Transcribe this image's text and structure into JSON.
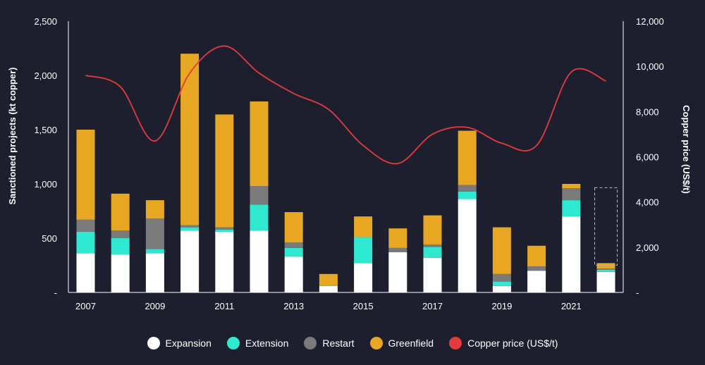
{
  "chart_data": {
    "type": "bar",
    "stacked": true,
    "x": [
      2007,
      2008,
      2009,
      2010,
      2011,
      2012,
      2013,
      2014,
      2015,
      2016,
      2017,
      2018,
      2019,
      2020,
      2021,
      2022
    ],
    "x_tick_labels": [
      "2007",
      "2009",
      "2011",
      "2013",
      "2015",
      "2017",
      "2019",
      "2021"
    ],
    "ylabel": "Sanctioned projects (kt copper)",
    "y2label": "Copper price (US$/t)",
    "ylim": [
      0,
      2500
    ],
    "y2lim": [
      0,
      12000
    ],
    "y_ticks": [
      0,
      500,
      1000,
      1500,
      2000,
      2500
    ],
    "y_tick_labels": [
      "-",
      "500",
      "1,000",
      "1,500",
      "2,000",
      "2,500"
    ],
    "y2_ticks": [
      0,
      2000,
      4000,
      6000,
      8000,
      10000,
      12000
    ],
    "y2_tick_labels": [
      "-",
      "2,000",
      "4,000",
      "6,000",
      "8,000",
      "10,000",
      "12,000"
    ],
    "grid": false,
    "legend_position": "bottom-center",
    "highlight_dashed_category": 2022,
    "series": [
      {
        "name": "Expansion",
        "color": "#ffffff",
        "values": [
          360,
          350,
          360,
          570,
          560,
          570,
          330,
          60,
          270,
          370,
          320,
          860,
          60,
          200,
          700,
          190
        ]
      },
      {
        "name": "Extension",
        "color": "#2ee8cf",
        "values": [
          200,
          150,
          40,
          30,
          20,
          240,
          80,
          0,
          240,
          0,
          100,
          70,
          40,
          0,
          150,
          20
        ]
      },
      {
        "name": "Restart",
        "color": "#7a7a7a",
        "values": [
          110,
          70,
          280,
          20,
          20,
          170,
          50,
          0,
          0,
          40,
          20,
          60,
          70,
          40,
          110,
          10
        ]
      },
      {
        "name": "Greenfield",
        "color": "#e7a722",
        "values": [
          830,
          340,
          170,
          1580,
          1040,
          780,
          280,
          110,
          190,
          180,
          270,
          500,
          430,
          190,
          40,
          50
        ]
      }
    ],
    "line_series": {
      "name": "Copper price (US$/t)",
      "color": "#e53b3b",
      "x": [
        2007,
        2008,
        2009,
        2010,
        2011,
        2012,
        2013,
        2014,
        2015,
        2016,
        2017,
        2018,
        2019,
        2020,
        2021,
        2022
      ],
      "values": [
        9600,
        9100,
        6700,
        9700,
        10900,
        9700,
        8800,
        8100,
        6500,
        5700,
        7000,
        7300,
        6600,
        6500,
        9750,
        9350
      ]
    }
  }
}
